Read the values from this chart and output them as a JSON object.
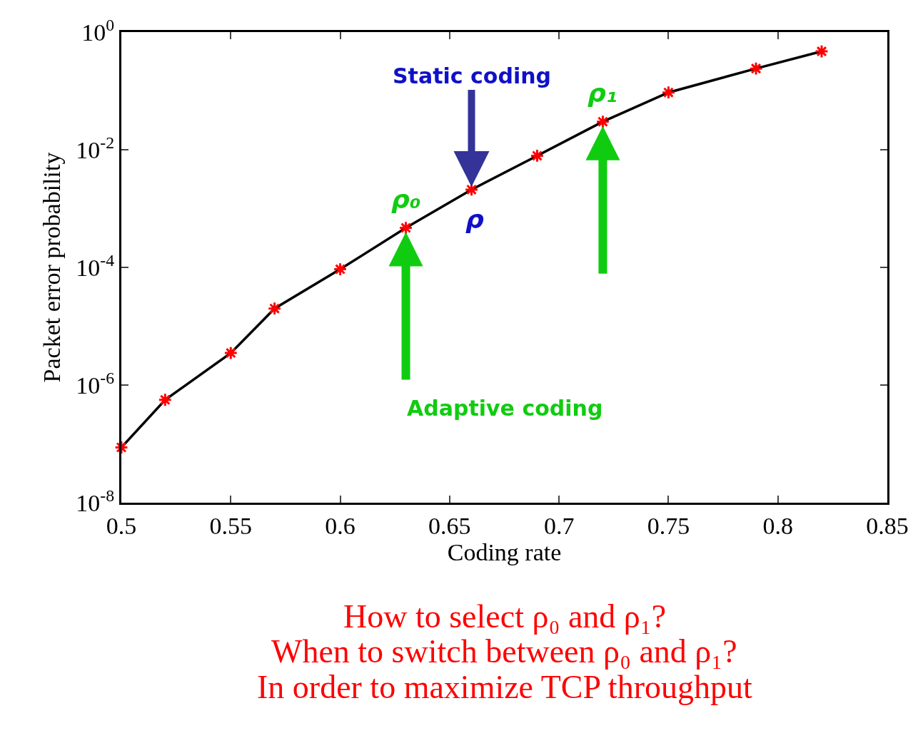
{
  "chart_data": {
    "type": "line",
    "xlabel": "Coding rate",
    "ylabel": "Packet error probability",
    "x": [
      0.5,
      0.52,
      0.55,
      0.57,
      0.6,
      0.63,
      0.66,
      0.69,
      0.72,
      0.75,
      0.79,
      0.82
    ],
    "series": [
      {
        "color": "#000000",
        "colors": [
          "#ff0000",
          "#ff0000",
          "#ff0000",
          "#ff0000",
          "#ff0000",
          "#ff0000",
          "#ff0000",
          "#ff0000",
          "#ff0000",
          "#ff0000",
          "#ff0000",
          "#ff0000"
        ],
        "values": [
          8.7e-08,
          5.6e-07,
          3.5e-06,
          2e-05,
          9.3e-05,
          0.00047,
          0.0021,
          0.0079,
          0.03,
          0.094,
          0.24,
          0.47
        ]
      }
    ],
    "marker": "cross",
    "log": "y",
    "xlim": [
      0.5,
      0.85
    ],
    "xticks": [
      0.5,
      0.55,
      0.6,
      0.65,
      0.7,
      0.75,
      0.8,
      0.85
    ],
    "ylim": [
      1e-08,
      1
    ],
    "yticks": [
      {
        "value": 1e-08,
        "label": "10$^{-8}$"
      },
      {
        "value": 1e-06,
        "label": "10$^{-6}$"
      },
      {
        "value": 0.0001,
        "label": "10$^{-4}$"
      },
      {
        "value": 0.01,
        "label": "10$^{-2}$"
      },
      {
        "value": 1,
        "label": "10$^{0}$"
      }
    ],
    "annotations": [
      {
        "text": "Static coding",
        "x": 0.66,
        "y": 0.0021
      },
      {
        "text": "ρ",
        "x": 0.66,
        "y": 0.0021
      },
      {
        "text": "ρ₀",
        "x": 0.63,
        "y": 0.00047
      },
      {
        "text": "ρ₁",
        "x": 0.72,
        "y": 0.03
      },
      "Adaptive coding",
      "How to select ρ₀ and ρ₁?",
      "When to switch between ρ₀ and ρ₁?",
      "In order to maximize TCP throughput"
    ]
  }
}
